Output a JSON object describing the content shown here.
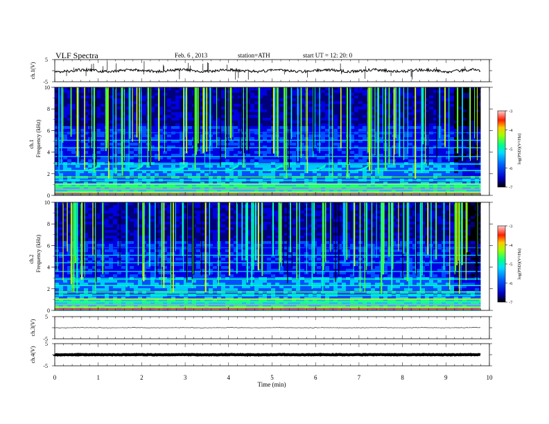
{
  "header": {
    "title": "VLF  Spectra",
    "date": "Feb. 6  , 2013",
    "station": "station=ATH",
    "start_ut": "start  UT  =    12: 20: 0"
  },
  "chart_data": [
    {
      "type": "line",
      "panel": "ch1-waveform",
      "ylabel": "ch.1(V)",
      "yticks": [
        "5",
        "-5"
      ],
      "ylim": [
        -5,
        5
      ],
      "trace_level": 0.0,
      "color": "#000000"
    },
    {
      "type": "heatmap",
      "panel": "ch1-spectrogram",
      "ylabel_lines": [
        "ch.1",
        "Frequency  (kHz)"
      ],
      "yticks": [
        "10",
        "8",
        "6",
        "4",
        "2",
        "0"
      ],
      "ylim": [
        0,
        10
      ],
      "xlim": [
        0,
        10
      ],
      "colorbar": {
        "label": "log(PSD)(V²/Hz)",
        "ticks": [
          "-3",
          "-4",
          "-5",
          "-6",
          "-7"
        ],
        "range": [
          -7,
          -3
        ]
      },
      "quasi_periodic_emission_times_min": [
        1.0,
        2.0,
        3.0,
        4.2,
        5.2,
        6.2,
        7.2
      ]
    },
    {
      "type": "heatmap",
      "panel": "ch2-spectrogram",
      "ylabel_lines": [
        "ch.2",
        "Frequency  (kHz)"
      ],
      "yticks": [
        "10",
        "8",
        "6",
        "4",
        "2",
        "0"
      ],
      "ylim": [
        0,
        10
      ],
      "xlim": [
        0,
        10
      ],
      "colorbar": {
        "label": "log(PSD)(V²/Hz)",
        "ticks": [
          "-3",
          "-4",
          "-5",
          "-6",
          "-7"
        ],
        "range": [
          -7,
          -3
        ]
      }
    },
    {
      "type": "line",
      "panel": "ch3-waveform",
      "ylabel": "ch.3(V)",
      "yticks": [
        "5",
        "-5"
      ],
      "ylim": [
        -5,
        5
      ],
      "trace_level": 0.0,
      "color": "#000000"
    },
    {
      "type": "line",
      "panel": "ch4-waveform",
      "ylabel": "ch.4(V)",
      "yticks": [
        "5",
        "-5"
      ],
      "ylim": [
        -5,
        5
      ],
      "trace_level": 0.0,
      "color": "#000000"
    },
    {
      "type": "axis",
      "xlabel": "Time  (min)",
      "xticks": [
        "0",
        "1",
        "2",
        "3",
        "4",
        "5",
        "6",
        "7",
        "8",
        "9",
        "10"
      ],
      "xlim": [
        0,
        10
      ],
      "data_end_min": 9.8
    }
  ],
  "colormap": [
    "#000000",
    "#00007a",
    "#0000e0",
    "#0050ff",
    "#00c8ff",
    "#00ffb4",
    "#50ff28",
    "#dcff00",
    "#ffa000",
    "#ff2800",
    "#ffb4b4"
  ]
}
